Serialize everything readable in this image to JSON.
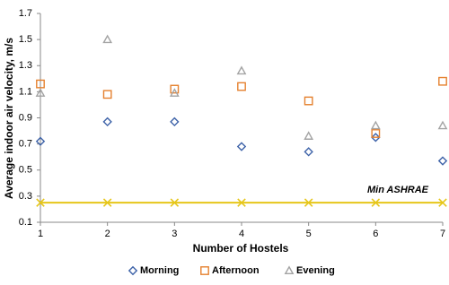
{
  "chart_data": {
    "type": "scatter",
    "x_label": "Number of Hostels",
    "y_label": "Average indoor air velocity, m/s",
    "x": [
      1,
      2,
      3,
      4,
      5,
      6,
      7
    ],
    "xlim": [
      1,
      7
    ],
    "xticks": [
      1,
      2,
      3,
      4,
      5,
      6,
      7
    ],
    "ylim": [
      0.1,
      1.7
    ],
    "yticks": [
      0.1,
      0.3,
      0.5,
      0.7,
      0.9,
      1.1,
      1.3,
      1.5,
      1.7
    ],
    "grid": false,
    "legend": "bottom",
    "series": [
      {
        "name": "Morning",
        "color": "#3d62a8",
        "marker": "diamond",
        "values": [
          0.72,
          0.87,
          0.87,
          0.68,
          0.64,
          0.75,
          0.57
        ]
      },
      {
        "name": "Afternoon",
        "color": "#e5812f",
        "marker": "square",
        "values": [
          1.16,
          1.08,
          1.12,
          1.14,
          1.03,
          0.78,
          1.18
        ]
      },
      {
        "name": "Evening",
        "color": "#a3a3a3",
        "marker": "triangle",
        "values": [
          1.09,
          1.5,
          1.09,
          1.26,
          0.76,
          0.84,
          0.84
        ]
      }
    ],
    "reference": {
      "label": "Min ASHRAE",
      "color": "#e6c619",
      "values": [
        0.25,
        0.25,
        0.25,
        0.25,
        0.25,
        0.25,
        0.25
      ]
    }
  }
}
